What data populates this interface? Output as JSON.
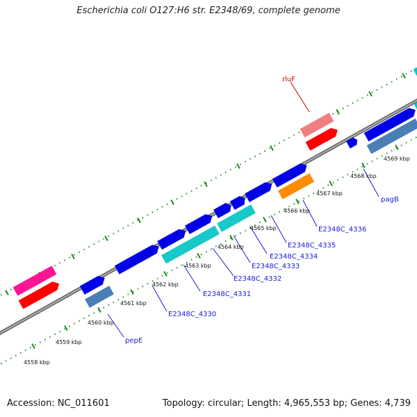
{
  "title": "Escherichia coli O127:H6 str. E2348/69, complete genome",
  "footer": {
    "accession": "Accession: NC_011601",
    "summary": "Topology: circular; Length: 4,965,553 bp; Genes: 4,739"
  },
  "colors": {
    "backbone": "#808080",
    "tick_mark": "#1e8a1e",
    "forward_cds": "#0000e6",
    "reverse_cds": "#ff0000",
    "forward_rna": "#ff1493",
    "pseudo_or_other": "#00c8c8",
    "pale_red": "#f07070",
    "steel_blue": "#4682b4",
    "orange": "#ff8c00",
    "label_blue": "#1a1ad6",
    "label_red": "#c00000"
  },
  "ticks": [
    "4558 kbp",
    "4559 kbp",
    "4560 kbp",
    "4561 kbp",
    "4562 kbp",
    "4563 kbp",
    "4564 kbp",
    "4565 kbp",
    "4566 kbp",
    "4567 kbp",
    "4568 kbp",
    "4569 kbp"
  ],
  "gene_labels": [
    {
      "name": "pepE",
      "color": "label_blue"
    },
    {
      "name": "E2348C_4330",
      "color": "label_blue"
    },
    {
      "name": "E2348C_4331",
      "color": "label_blue"
    },
    {
      "name": "E2348C_4332",
      "color": "label_blue"
    },
    {
      "name": "E2348C_4333",
      "color": "label_blue"
    },
    {
      "name": "E2348C_4334",
      "color": "label_blue"
    },
    {
      "name": "E2348C_4335",
      "color": "label_blue"
    },
    {
      "name": "E2348C_4336",
      "color": "label_blue"
    },
    {
      "name": "pagB",
      "color": "label_blue"
    },
    {
      "name": "rluF",
      "color": "label_red"
    }
  ]
}
